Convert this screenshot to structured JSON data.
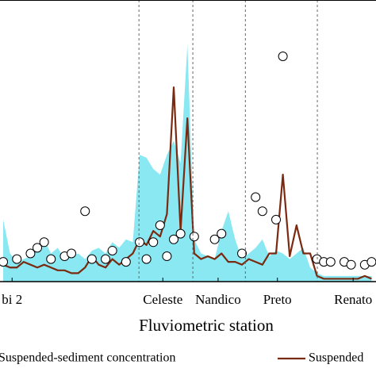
{
  "chart_data": {
    "type": "line",
    "x_label": "Fluviometric station",
    "x": [
      0,
      1,
      2,
      3,
      4,
      5,
      6,
      7,
      8,
      9,
      10,
      11,
      12,
      13,
      14,
      15,
      16,
      17,
      18,
      19,
      20,
      21,
      22,
      23,
      24,
      25,
      26,
      27,
      28,
      29,
      30,
      31,
      32,
      33,
      34,
      35,
      36,
      37,
      38,
      39,
      40,
      41,
      42,
      43,
      44,
      45,
      46,
      47,
      48,
      49,
      50,
      51,
      52,
      53,
      54
    ],
    "xlim": [
      -0.47,
      54.65
    ],
    "ylim": [
      0,
      100
    ],
    "xticks": [
      {
        "value": 1.3,
        "label": "bi 2"
      },
      {
        "value": 23.4,
        "label": "Celeste"
      },
      {
        "value": 31.5,
        "label": "Nandico"
      },
      {
        "value": 40.2,
        "label": "Preto"
      },
      {
        "value": 51.3,
        "label": "Renato"
      }
    ],
    "separators": [
      19.9,
      27.8,
      35.5,
      46.05
    ],
    "series": [
      {
        "name": "Suspended-sediment concentration",
        "kind": "area",
        "color": "#8ae8f2",
        "values": [
          22,
          10,
          7,
          8,
          9,
          12,
          15,
          10,
          12,
          8,
          9,
          10,
          8,
          11,
          12,
          10,
          14,
          12,
          15,
          14,
          45,
          44,
          40,
          38,
          45,
          50,
          42,
          84,
          15,
          10,
          9,
          8,
          18,
          25,
          15,
          8,
          10,
          12,
          15,
          9,
          11,
          10,
          8,
          10,
          12,
          5,
          3,
          2,
          2,
          2,
          2,
          2,
          2,
          2,
          2
        ]
      },
      {
        "name": "Suspended",
        "kind": "line",
        "color": "#7a2a10",
        "values": [
          6,
          5,
          5,
          7,
          6,
          5,
          6,
          5,
          4,
          4,
          3,
          3,
          5,
          9,
          6,
          5,
          8,
          6,
          8,
          10,
          15,
          13,
          18,
          16,
          24,
          69,
          18,
          58,
          10,
          8,
          9,
          8,
          10,
          7,
          7,
          6,
          8,
          7,
          6,
          10,
          10,
          38,
          9,
          20,
          10,
          10,
          2,
          1,
          1,
          1,
          1,
          1,
          1,
          2,
          1
        ]
      },
      {
        "kind": "points",
        "color": "#ffffff",
        "values": [
          7,
          null,
          8,
          null,
          10,
          12,
          14,
          8,
          null,
          9,
          10,
          null,
          25,
          8,
          null,
          8,
          11,
          null,
          7,
          null,
          14,
          8,
          14,
          20,
          9,
          15,
          17,
          null,
          16,
          null,
          null,
          15,
          17,
          null,
          null,
          10,
          null,
          30,
          25,
          null,
          22,
          80,
          null,
          null,
          null,
          null,
          8,
          7,
          7,
          null,
          7,
          6,
          null,
          6,
          7
        ]
      }
    ]
  }
}
